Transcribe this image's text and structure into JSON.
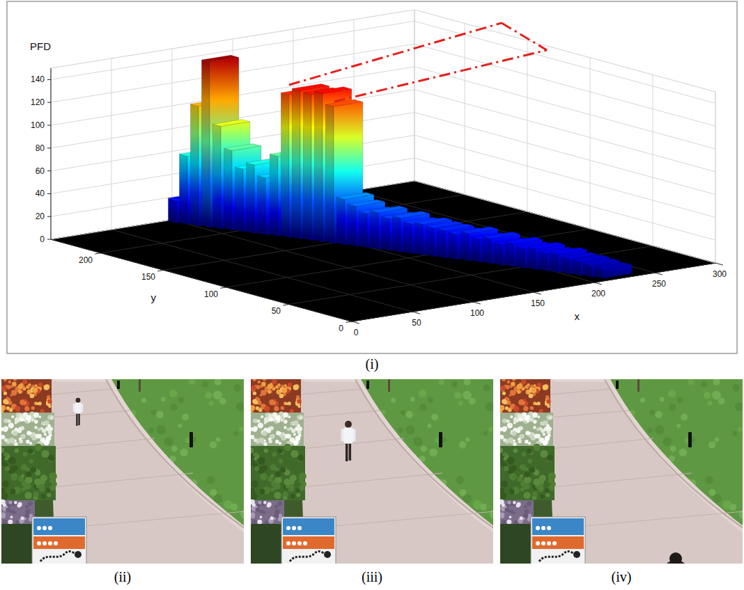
{
  "chart_data": {
    "type": "bar3d",
    "label": "(i)",
    "z_label": "PFD",
    "x_label": "x",
    "y_label": "y",
    "xlim": [
      0,
      300
    ],
    "xticks": [
      0,
      50,
      100,
      150,
      200,
      250,
      300
    ],
    "ylim": [
      0,
      240
    ],
    "yticks": [
      0,
      50,
      100,
      150,
      200
    ],
    "zlim": [
      0,
      150
    ],
    "zticks": [
      0,
      20,
      40,
      60,
      80,
      100,
      120,
      140
    ],
    "grid": true,
    "x": [
      108,
      111,
      114,
      117,
      120,
      123,
      126,
      129,
      132,
      136,
      139,
      142,
      145,
      148,
      151,
      154,
      157,
      160,
      163,
      166,
      169,
      172,
      175,
      178,
      181,
      184,
      188,
      191,
      194,
      197,
      200,
      203,
      206,
      209,
      212,
      215,
      218,
      221,
      224
    ],
    "y": [
      236,
      230,
      224,
      218,
      212,
      206,
      200,
      194,
      188,
      182,
      176,
      170,
      164,
      158,
      152,
      146,
      140,
      134,
      128,
      122,
      116,
      110,
      104,
      98,
      92,
      86,
      80,
      74,
      68,
      62,
      56,
      50,
      44,
      38,
      32,
      26,
      20,
      14,
      8
    ],
    "values": [
      20,
      60,
      105,
      145,
      90,
      70,
      55,
      60,
      50,
      70,
      125,
      130,
      128,
      130,
      120,
      40,
      35,
      30,
      32,
      28,
      30,
      26,
      27,
      25,
      24,
      22,
      24,
      20,
      22,
      18,
      20,
      17,
      18,
      15,
      16,
      13,
      12,
      10,
      8
    ]
  },
  "photos": {
    "labels": [
      "(ii)",
      "(iii)",
      "(iv)"
    ]
  }
}
